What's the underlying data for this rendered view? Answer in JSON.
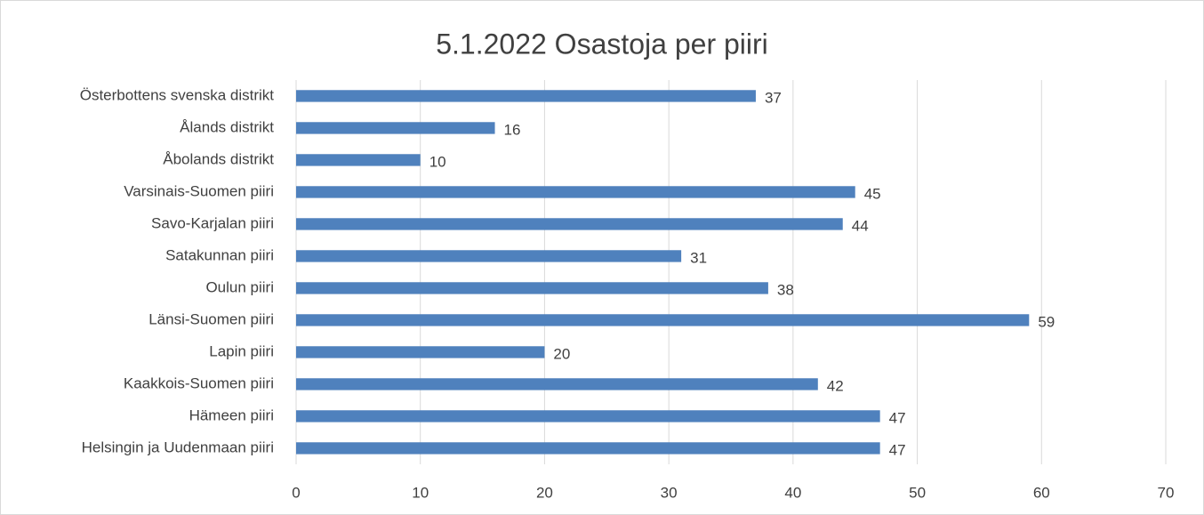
{
  "chart_data": {
    "type": "hbar",
    "title": "5.1.2022 Osastoja per piiri",
    "categories": [
      "Österbottens svenska distrikt",
      "Ålands distrikt",
      "Åbolands distrikt",
      "Varsinais-Suomen piiri",
      "Savo-Karjalan piiri",
      "Satakunnan piiri",
      "Oulun piiri",
      "Länsi-Suomen piiri",
      "Lapin piiri",
      "Kaakkois-Suomen piiri",
      "Hämeen piiri",
      "Helsingin ja Uudenmaan piiri"
    ],
    "values": [
      37,
      16,
      10,
      45,
      44,
      31,
      38,
      59,
      20,
      42,
      47,
      47
    ],
    "color": "#4f81bd",
    "xlim": [
      0,
      70
    ],
    "xticks": [
      0,
      10,
      20,
      30,
      40,
      50,
      60,
      70
    ],
    "grid": true
  }
}
